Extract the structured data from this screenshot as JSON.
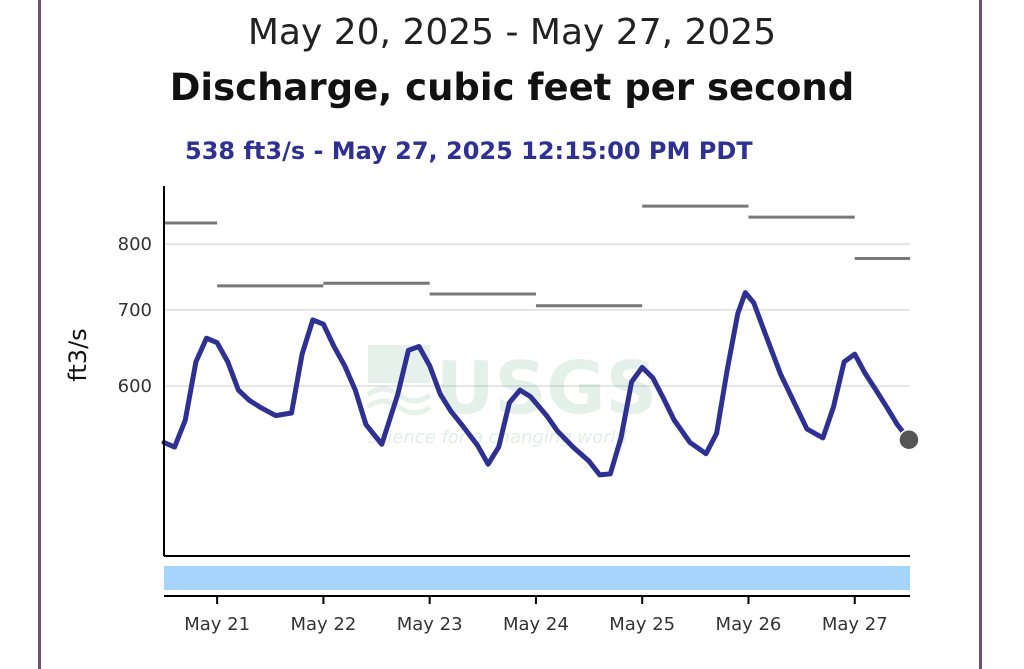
{
  "header": {
    "date_range": "May 20, 2025 - May 27, 2025",
    "parameter": "Discharge, cubic feet per second",
    "current_value": "538 ft3/s - May 27, 2025 12:15:00 PM PDT"
  },
  "watermark": {
    "logo": "USGS",
    "tagline": "science for a changing world"
  },
  "colors": {
    "series": "#2e3192",
    "median": "#777777",
    "approval_bar": "#a6d5fb",
    "frame": "#6e5377"
  },
  "chart_data": {
    "type": "line",
    "title": "Discharge, cubic feet per second",
    "subtitle": "May 20, 2025 - May 27, 2025",
    "ylabel": "ft3/s",
    "xlabel": "",
    "ylim": [
      425,
      900
    ],
    "xlim": [
      20.5,
      27.52
    ],
    "x_unit": "day of May 2025",
    "y_scale": "log",
    "yticks": [
      600,
      700,
      800
    ],
    "xticks": [
      "May 21",
      "May 22",
      "May 23",
      "May 24",
      "May 25",
      "May 26",
      "May 27"
    ],
    "grid": "horizontal",
    "series": [
      {
        "values": [
          [
            20.5,
            535
          ],
          [
            20.6,
            530
          ],
          [
            20.7,
            560
          ],
          [
            20.8,
            630
          ],
          [
            20.9,
            661
          ],
          [
            21.0,
            655
          ],
          [
            21.1,
            630
          ],
          [
            21.2,
            595
          ],
          [
            21.3,
            583
          ],
          [
            21.4,
            575
          ],
          [
            21.55,
            565
          ],
          [
            21.7,
            568
          ],
          [
            21.8,
            640
          ],
          [
            21.9,
            686
          ],
          [
            22.0,
            680
          ],
          [
            22.1,
            650
          ],
          [
            22.2,
            625
          ],
          [
            22.3,
            595
          ],
          [
            22.4,
            555
          ],
          [
            22.55,
            533
          ],
          [
            22.7,
            590
          ],
          [
            22.8,
            645
          ],
          [
            22.9,
            650
          ],
          [
            23.0,
            625
          ],
          [
            23.1,
            590
          ],
          [
            23.2,
            570
          ],
          [
            23.3,
            555
          ],
          [
            23.45,
            532
          ],
          [
            23.55,
            512
          ],
          [
            23.65,
            530
          ],
          [
            23.75,
            580
          ],
          [
            23.85,
            595
          ],
          [
            23.95,
            587
          ],
          [
            24.1,
            565
          ],
          [
            24.2,
            548
          ],
          [
            24.35,
            530
          ],
          [
            24.5,
            515
          ],
          [
            24.6,
            501
          ],
          [
            24.7,
            502
          ],
          [
            24.8,
            540
          ],
          [
            24.9,
            605
          ],
          [
            25.0,
            623
          ],
          [
            25.1,
            610
          ],
          [
            25.2,
            585
          ],
          [
            25.3,
            560
          ],
          [
            25.45,
            535
          ],
          [
            25.6,
            523
          ],
          [
            25.7,
            545
          ],
          [
            25.8,
            620
          ],
          [
            25.9,
            695
          ],
          [
            25.97,
            725
          ],
          [
            26.05,
            710
          ],
          [
            26.15,
            670
          ],
          [
            26.3,
            615
          ],
          [
            26.45,
            575
          ],
          [
            26.55,
            550
          ],
          [
            26.7,
            540
          ],
          [
            26.8,
            575
          ],
          [
            26.9,
            630
          ],
          [
            27.0,
            640
          ],
          [
            27.1,
            615
          ],
          [
            27.2,
            595
          ],
          [
            27.3,
            575
          ],
          [
            27.4,
            555
          ],
          [
            27.51,
            538
          ]
        ]
      }
    ],
    "daily_median": [
      {
        "start": 20.5,
        "end": 21.0,
        "value": 835
      },
      {
        "start": 21.0,
        "end": 22.0,
        "value": 735
      },
      {
        "start": 22.0,
        "end": 23.0,
        "value": 739
      },
      {
        "start": 23.0,
        "end": 24.0,
        "value": 723
      },
      {
        "start": 24.0,
        "end": 25.0,
        "value": 706
      },
      {
        "start": 25.0,
        "end": 26.0,
        "value": 864
      },
      {
        "start": 26.0,
        "end": 27.0,
        "value": 845
      },
      {
        "start": 27.0,
        "end": 27.52,
        "value": 777
      }
    ],
    "latest_point": {
      "x": 27.51,
      "y": 538
    }
  }
}
